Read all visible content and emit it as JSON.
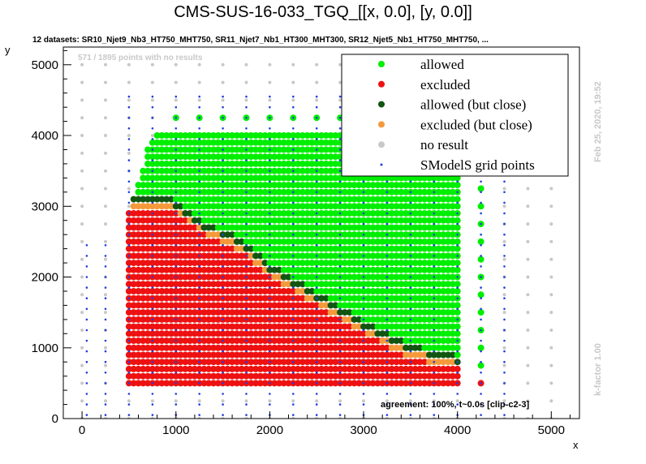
{
  "title": "CMS-SUS-16-033_TGQ_[[x, 0.0], [y, 0.0]]",
  "subtitle": "12 datasets: SR10_Njet9_Nb3_HT750_MHT750, SR11_Njet7_Nb1_HT300_MHT300, SR12_Njet5_Nb1_HT750_MHT750,  ...",
  "no_results_note": "571 / 1895 points with no results",
  "date_note": "Feb 25, 2020, 19:52",
  "kfactor_note": "k-factor 1.00",
  "agreement_note": "agreement: 100%, t~0.0s [clip-c2-3]",
  "colors": {
    "allowed": "#00ee00",
    "excluded": "#ee1111",
    "allowed_close": "#115511",
    "excluded_close": "#f59a3c",
    "no_result": "#c8c8c8",
    "grid": "#1f3fe0"
  },
  "chart_data": {
    "type": "scatter",
    "xlabel": "x",
    "ylabel": "y",
    "xlim": [
      -200,
      5300
    ],
    "ylim": [
      0,
      5250
    ],
    "xticks": [
      0,
      1000,
      2000,
      3000,
      4000,
      5000
    ],
    "yticks": [
      0,
      1000,
      2000,
      3000,
      4000,
      5000
    ],
    "legend_position": "top-right",
    "legend": [
      {
        "label": "allowed",
        "key": "allowed"
      },
      {
        "label": "excluded",
        "key": "excluded"
      },
      {
        "label": "allowed (but close)",
        "key": "allowed_close"
      },
      {
        "label": "excluded (but close)",
        "key": "excluded_close"
      },
      {
        "label": "no result",
        "key": "no_result"
      },
      {
        "label": "SModelS grid points",
        "key": "grid"
      }
    ],
    "region": {
      "x_min": 500,
      "x_max": 4000,
      "x_step": 50,
      "y_min": 500,
      "y_step": 100,
      "top_profile": [
        [
          500,
          2900
        ],
        [
          600,
          3300
        ],
        [
          700,
          3800
        ],
        [
          800,
          4000
        ],
        [
          4000,
          4000
        ]
      ],
      "boundary": [
        [
          500,
          3050
        ],
        [
          800,
          3050
        ],
        [
          1000,
          3000
        ],
        [
          1300,
          2700
        ],
        [
          1700,
          2450
        ],
        [
          2000,
          2100
        ],
        [
          2500,
          1700
        ],
        [
          3000,
          1300
        ],
        [
          3500,
          950
        ],
        [
          4000,
          800
        ]
      ],
      "close_band": 90
    },
    "column_4250": {
      "x": 4250,
      "y_values": [
        500,
        750,
        1000,
        1250,
        1500,
        1750,
        2000,
        2250,
        2500,
        2750,
        3000,
        3250
      ],
      "excluded_y": [
        500
      ]
    },
    "top_row_4250": {
      "y": 4250,
      "x_values": [
        1000,
        1250,
        1500,
        1750,
        2000,
        2250,
        2500,
        2750,
        3000,
        3250,
        3500,
        3750
      ]
    },
    "no_result_grid": {
      "x_min": 0,
      "x_max": 5000,
      "y_min": 0,
      "y_max": 5000,
      "step": 250
    }
  }
}
